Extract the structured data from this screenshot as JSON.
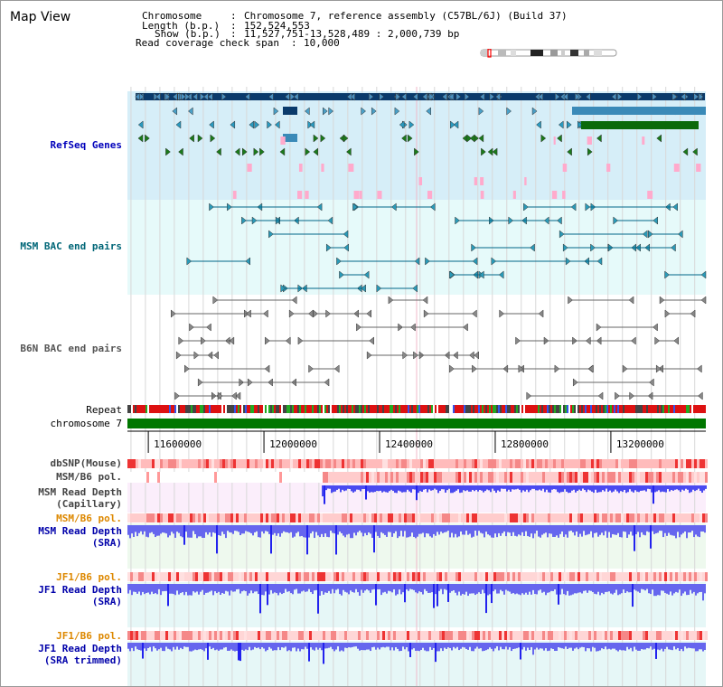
{
  "view": {
    "title": "Map View"
  },
  "info": {
    "chromosome_label": "Chromosome",
    "chromosome_value": "Chromosome 7, reference assembly (C57BL/6J) (Build 37)",
    "length_label": "Length (b.p.)",
    "length_value": "152,524,553",
    "show_label": "Show (b.p.)",
    "show_value": "11,527,751-13,528,489 : 2,000,739 bp",
    "coverage_label": "Read coverage check span",
    "coverage_value": "10,000"
  },
  "region": {
    "start": 11527751,
    "end": 13528489
  },
  "axis": {
    "ticks": [
      {
        "pos": 11600000,
        "label": "11600000"
      },
      {
        "pos": 12000000,
        "label": "12000000"
      },
      {
        "pos": 12400000,
        "label": "12400000"
      },
      {
        "pos": 12800000,
        "label": "12800000"
      },
      {
        "pos": 13200000,
        "label": "13200000"
      }
    ]
  },
  "tracks": {
    "refseq": {
      "label": "RefSeq Genes"
    },
    "msm_bac": {
      "label": "MSM BAC end pairs"
    },
    "b6n_bac": {
      "label": "B6N BAC end pairs"
    },
    "repeat": {
      "label": "Repeat"
    },
    "chromosome": {
      "label": "chromosome 7"
    },
    "dbsnp": {
      "label": "dbSNP(Mouse)"
    },
    "msm_b6_pol": {
      "label": "MSM/B6 pol."
    },
    "msm_depth_cap": {
      "label1": "MSM Read Depth",
      "label2": "(Capillary)"
    },
    "msm_b6_pol2": {
      "label": "MSM/B6 pol."
    },
    "msm_depth_sra": {
      "label1": "MSM Read Depth",
      "label2": "(SRA)"
    },
    "jf1_b6_pol": {
      "label": "JF1/B6 pol."
    },
    "jf1_depth_sra": {
      "label1": "JF1 Read Depth",
      "label2": "(SRA)"
    },
    "jf1_b6_pol2": {
      "label": "JF1/B6 pol."
    },
    "jf1_depth_trim": {
      "label1": "JF1 Read Depth",
      "label2": "(SRA trimmed)"
    }
  },
  "colors": {
    "refseq_label": "#0000bb",
    "msm_bac_label": "#006677",
    "b6n_label": "#555555",
    "jf1_depth_label": "#0000aa",
    "pol2_label": "#dd8800",
    "chromosome_bar": "#007700",
    "depth_fill": "#6666ee"
  }
}
